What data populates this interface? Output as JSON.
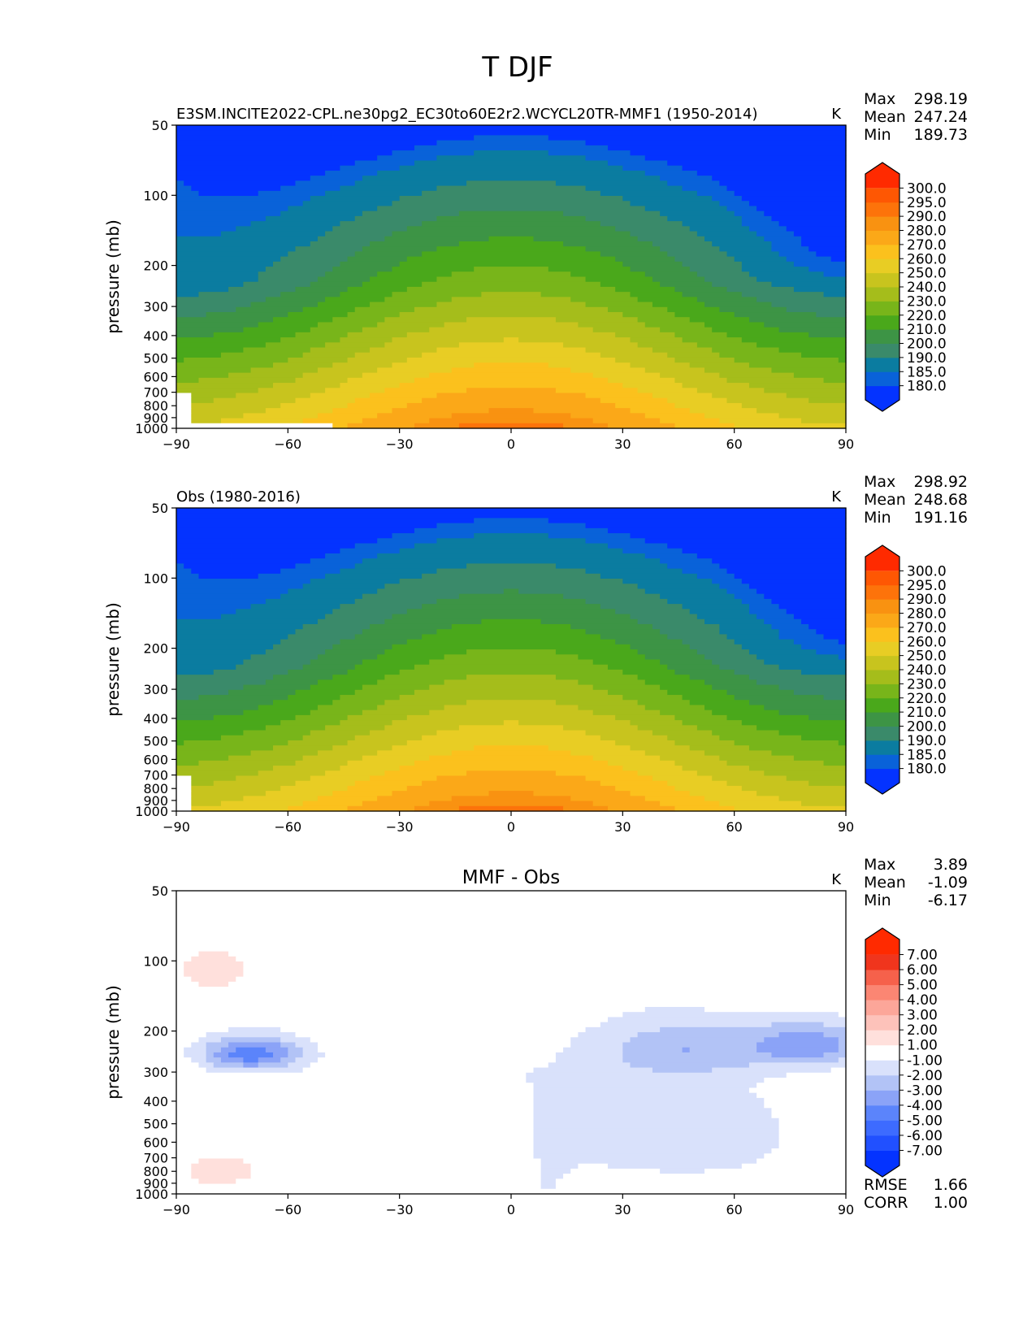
{
  "figure_title": "T DJF",
  "colors": {
    "abs_levels": [
      "#0433ff",
      "#0962d9",
      "#0b7ca0",
      "#3a8a6a",
      "#3d9445",
      "#4aa81b",
      "#78b51a",
      "#a5bd1b",
      "#c8c41e",
      "#e8cd24",
      "#fbc11d",
      "#fba818",
      "#f99211",
      "#fd730a",
      "#fe5703",
      "#ff2a00"
    ],
    "diff_levels": [
      "#0433ff",
      "#2150ff",
      "#3d6bff",
      "#5b84fb",
      "#8ba3f7",
      "#b2c3f6",
      "#d9e1fb",
      "#ffffff",
      "#ffe0dc",
      "#fdc2ba",
      "#fca699",
      "#fb8673",
      "#f6614b",
      "#f0351d",
      "#ff2a00"
    ]
  },
  "chart_data": [
    {
      "type": "contourf",
      "title": "E3SM.INCITE2022-CPL.ne30pg2_EC30to60E2r2.WCYCL20TR-MMF1 (1950-2014)",
      "units": "K",
      "stats": {
        "max_label": "Max",
        "max": "298.19",
        "mean_label": "Mean",
        "mean": "247.24",
        "min_label": "Min",
        "min": "189.73"
      },
      "xlabel": "",
      "ylabel": "pressure (mb)",
      "xlim": [
        -90,
        90
      ],
      "ylim": [
        1000,
        50
      ],
      "y_scale": "log",
      "xticks": [
        "−90",
        "−60",
        "−30",
        "0",
        "30",
        "60",
        "90"
      ],
      "yticks": [
        "50",
        "100",
        "200",
        "300",
        "400",
        "500",
        "600",
        "700",
        "800",
        "900",
        "1000"
      ],
      "colorbar_levels": [
        "180.0",
        "185.0",
        "190.0",
        "200.0",
        "210.0",
        "220.0",
        "230.0",
        "240.0",
        "250.0",
        "260.0",
        "270.0",
        "280.0",
        "290.0",
        "295.0",
        "300.0"
      ]
    },
    {
      "type": "contourf",
      "title": "Obs (1980-2016)",
      "units": "K",
      "stats": {
        "max_label": "Max",
        "max": "298.92",
        "mean_label": "Mean",
        "mean": "248.68",
        "min_label": "Min",
        "min": "191.16"
      },
      "xlabel": "",
      "ylabel": "pressure (mb)",
      "xlim": [
        -90,
        90
      ],
      "ylim": [
        1000,
        50
      ],
      "y_scale": "log",
      "xticks": [
        "−90",
        "−60",
        "−30",
        "0",
        "30",
        "60",
        "90"
      ],
      "yticks": [
        "50",
        "100",
        "200",
        "300",
        "400",
        "500",
        "600",
        "700",
        "800",
        "900",
        "1000"
      ],
      "colorbar_levels": [
        "180.0",
        "185.0",
        "190.0",
        "200.0",
        "210.0",
        "220.0",
        "230.0",
        "240.0",
        "250.0",
        "260.0",
        "270.0",
        "280.0",
        "290.0",
        "295.0",
        "300.0"
      ]
    },
    {
      "type": "contourf",
      "title": "MMF - Obs",
      "units": "K",
      "stats": {
        "max_label": "Max",
        "max": "3.89",
        "mean_label": "Mean",
        "mean": "-1.09",
        "min_label": "Min",
        "min": "-6.17"
      },
      "extra_stats": {
        "rmse_label": "RMSE",
        "rmse": "1.66",
        "corr_label": "CORR",
        "corr": "1.00"
      },
      "xlabel": "",
      "ylabel": "pressure (mb)",
      "xlim": [
        -90,
        90
      ],
      "ylim": [
        1000,
        50
      ],
      "y_scale": "log",
      "xticks": [
        "−90",
        "−60",
        "−30",
        "0",
        "30",
        "60",
        "90"
      ],
      "yticks": [
        "50",
        "100",
        "200",
        "300",
        "400",
        "500",
        "600",
        "700",
        "800",
        "900",
        "1000"
      ],
      "colorbar_levels": [
        "-7.00",
        "-6.00",
        "-5.00",
        "-4.00",
        "-3.00",
        "-2.00",
        "-1.00",
        "1.00",
        "2.00",
        "3.00",
        "4.00",
        "5.00",
        "6.00",
        "7.00"
      ]
    }
  ]
}
